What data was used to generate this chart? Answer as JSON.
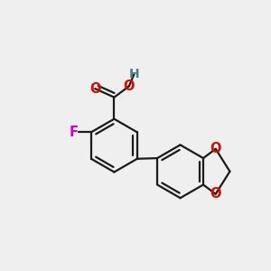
{
  "background_color": "#efefef",
  "bond_color": "#1a1a1a",
  "O_color": "#cc1100",
  "F_color": "#cc00cc",
  "H_color": "#4a8080",
  "bond_width": 1.6,
  "dbo": 0.032,
  "figsize": [
    3.0,
    3.0
  ],
  "dpi": 100,
  "xlim": [
    -0.85,
    0.85
  ],
  "ylim": [
    -0.82,
    0.72
  ]
}
